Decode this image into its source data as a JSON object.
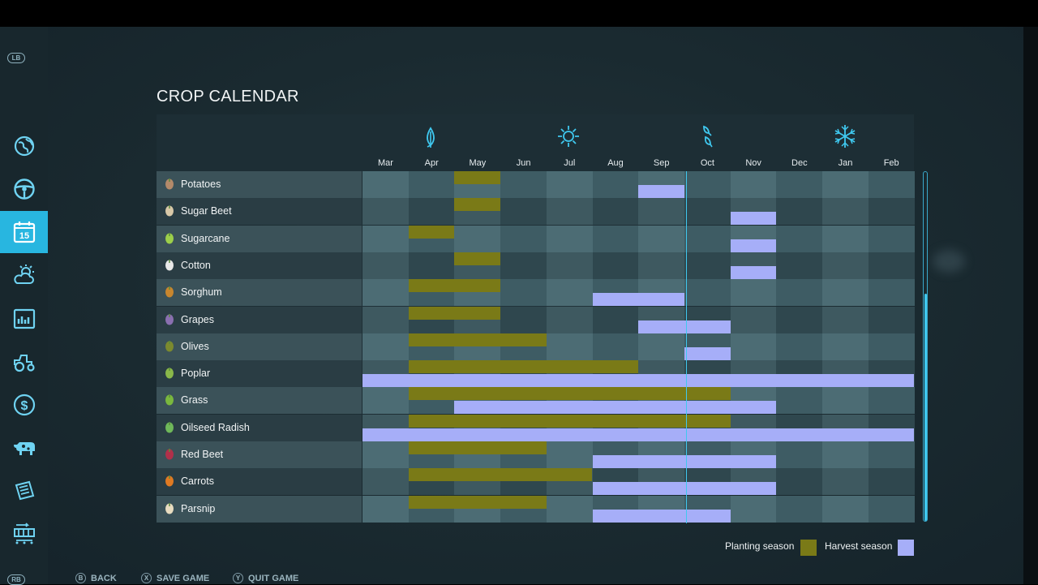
{
  "title": "CROP CALENDAR",
  "sidebar": {
    "lb_label": "LB",
    "rb_label": "RB",
    "calendar_day": "15",
    "items": [
      {
        "icon": "globe-map-icon"
      },
      {
        "icon": "steering-wheel-icon"
      },
      {
        "icon": "calendar-icon",
        "active": true
      },
      {
        "icon": "weather-icon"
      },
      {
        "icon": "statistics-chart-icon"
      },
      {
        "icon": "tractor-icon"
      },
      {
        "icon": "finances-dollar-icon"
      },
      {
        "icon": "animals-cow-icon"
      },
      {
        "icon": "contracts-icon"
      },
      {
        "icon": "production-chains-icon"
      }
    ]
  },
  "seasons": [
    "spring-leaf-icon",
    "summer-sun-icon",
    "autumn-leaves-icon",
    "winter-snowflake-icon"
  ],
  "months": [
    "Mar",
    "Apr",
    "May",
    "Jun",
    "Jul",
    "Aug",
    "Sep",
    "Oct",
    "Nov",
    "Dec",
    "Jan",
    "Feb"
  ],
  "crops": [
    {
      "name": "Potatoes",
      "icon": "potato-icon",
      "plant": [
        [
          2,
          3
        ]
      ],
      "harvest": [
        [
          6,
          7
        ]
      ]
    },
    {
      "name": "Sugar Beet",
      "icon": "sugar-beet-icon",
      "plant": [
        [
          2,
          3
        ]
      ],
      "harvest": [
        [
          8,
          9
        ]
      ]
    },
    {
      "name": "Sugarcane",
      "icon": "sugarcane-icon",
      "plant": [
        [
          1,
          2
        ]
      ],
      "harvest": [
        [
          8,
          9
        ]
      ]
    },
    {
      "name": "Cotton",
      "icon": "cotton-icon",
      "plant": [
        [
          2,
          3
        ]
      ],
      "harvest": [
        [
          8,
          9
        ]
      ]
    },
    {
      "name": "Sorghum",
      "icon": "sorghum-icon",
      "plant": [
        [
          1,
          3
        ]
      ],
      "harvest": [
        [
          5,
          7
        ]
      ]
    },
    {
      "name": "Grapes",
      "icon": "grapes-icon",
      "plant": [
        [
          1,
          3
        ]
      ],
      "harvest": [
        [
          6,
          8
        ]
      ]
    },
    {
      "name": "Olives",
      "icon": "olives-icon",
      "plant": [
        [
          1,
          4
        ]
      ],
      "harvest": [
        [
          7,
          8
        ]
      ]
    },
    {
      "name": "Poplar",
      "icon": "poplar-icon",
      "plant": [
        [
          1,
          6
        ]
      ],
      "harvest": [
        [
          0,
          12
        ]
      ]
    },
    {
      "name": "Grass",
      "icon": "grass-icon",
      "plant": [
        [
          1,
          8
        ]
      ],
      "harvest": [
        [
          2,
          9
        ]
      ]
    },
    {
      "name": "Oilseed Radish",
      "icon": "oilseed-radish-icon",
      "plant": [
        [
          1,
          8
        ]
      ],
      "harvest": [
        [
          0,
          12
        ]
      ]
    },
    {
      "name": "Red Beet",
      "icon": "red-beet-icon",
      "plant": [
        [
          1,
          4
        ]
      ],
      "harvest": [
        [
          5,
          9
        ]
      ]
    },
    {
      "name": "Carrots",
      "icon": "carrot-icon",
      "plant": [
        [
          1,
          5
        ]
      ],
      "harvest": [
        [
          5,
          9
        ]
      ]
    },
    {
      "name": "Parsnip",
      "icon": "parsnip-icon",
      "plant": [
        [
          1,
          4
        ]
      ],
      "harvest": [
        [
          5,
          8
        ]
      ]
    }
  ],
  "current_month_fraction": 7.03,
  "legend": {
    "planting_label": "Planting season",
    "harvest_label": "Harvest season",
    "planting_color": "#7a7a17",
    "harvest_color": "#a6aef8"
  },
  "footer": [
    {
      "key": "B",
      "label": "BACK"
    },
    {
      "key": "X",
      "label": "SAVE GAME"
    },
    {
      "key": "Y",
      "label": "QUIT GAME"
    }
  ]
}
